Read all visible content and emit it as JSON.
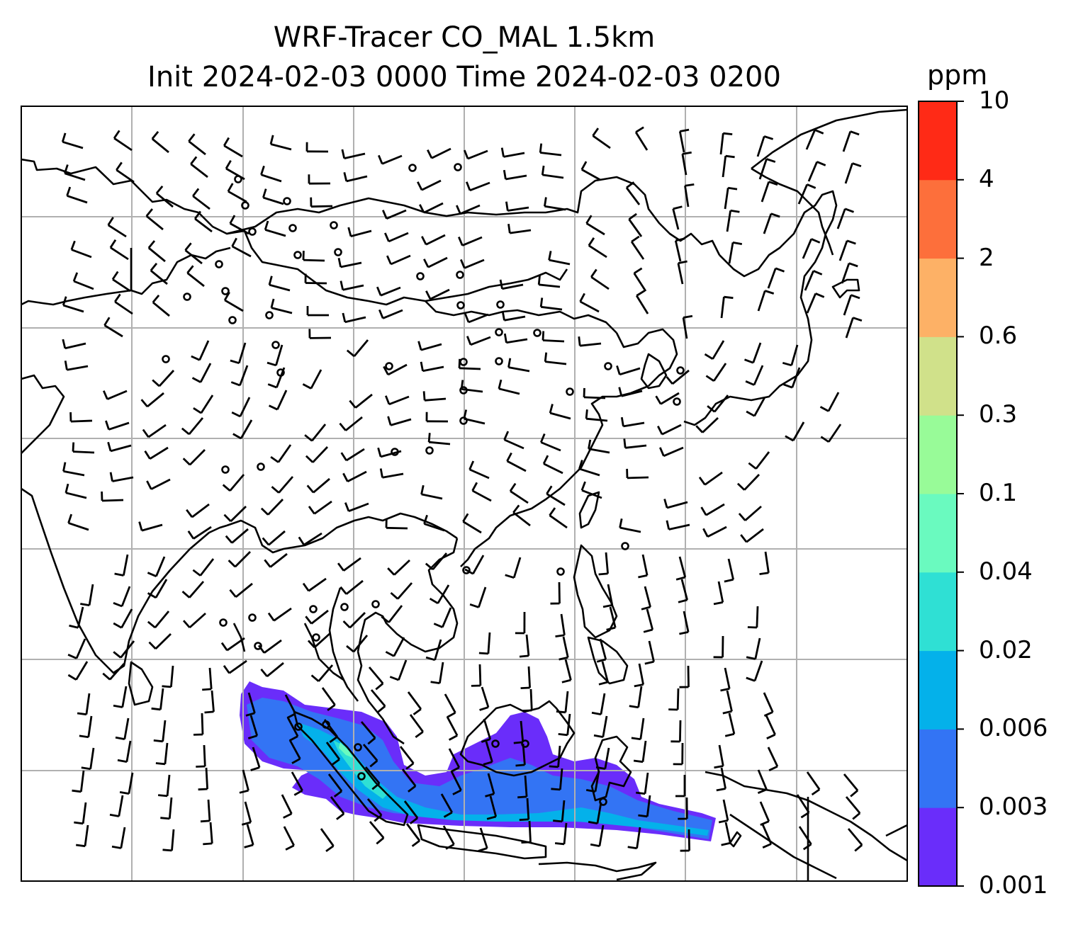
{
  "title": {
    "line1": "WRF-Tracer CO_MAL 1.5km",
    "line2": "Init 2024-02-03 0000 Time 2024-02-03 0200"
  },
  "colorbar": {
    "unit": "ppm",
    "levels": [
      "0.001",
      "0.003",
      "0.006",
      "0.02",
      "0.04",
      "0.1",
      "0.3",
      "0.6",
      "2",
      "4",
      "10"
    ],
    "colors": [
      "#6a2dfa",
      "#3374f4",
      "#04b1ea",
      "#2fe0d4",
      "#6afabf",
      "#98fb98",
      "#d0e18a",
      "#fdb166",
      "#fd6f3b",
      "#ff2a16"
    ]
  },
  "map": {
    "grid": "on",
    "plume_colors": {
      "low": "#6a2dfa",
      "mid": "#3374f4",
      "high": "#04b1ea",
      "peak": "#2fe0d4",
      "core": "#6afabf"
    }
  }
}
